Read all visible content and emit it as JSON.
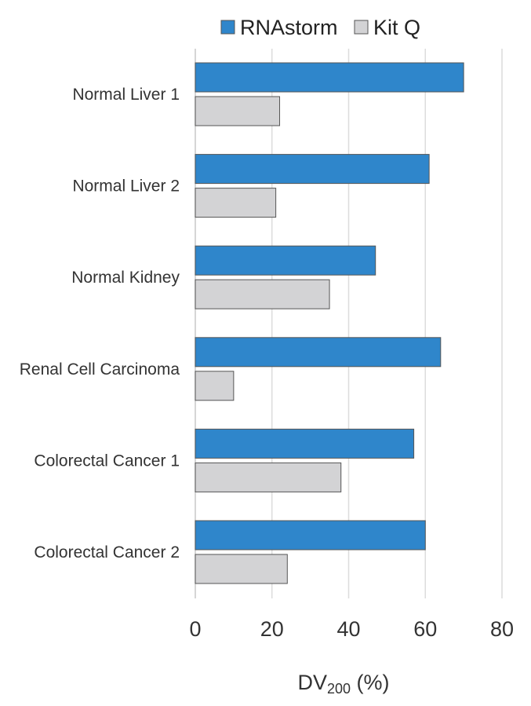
{
  "chart_data": {
    "type": "bar",
    "orientation": "horizontal",
    "categories": [
      "Normal Liver 1",
      "Normal Liver 2",
      "Normal Kidney",
      "Renal Cell Carcinoma",
      "Colorectal Cancer 1",
      "Colorectal Cancer 2"
    ],
    "series": [
      {
        "name": "RNAstorm",
        "color": "#2f86cb",
        "values": [
          70,
          61,
          47,
          64,
          57,
          60
        ]
      },
      {
        "name": "Kit Q",
        "color": "#d3d3d5",
        "values": [
          22,
          21,
          35,
          10,
          38,
          24
        ]
      }
    ],
    "xlabel_main": "DV",
    "xlabel_sub": "200",
    "xlabel_suffix": " (%)",
    "xlim": [
      0,
      80
    ],
    "xticks": [
      "0",
      "20",
      "40",
      "60",
      "80"
    ],
    "grid": true,
    "legend_position": "top"
  }
}
